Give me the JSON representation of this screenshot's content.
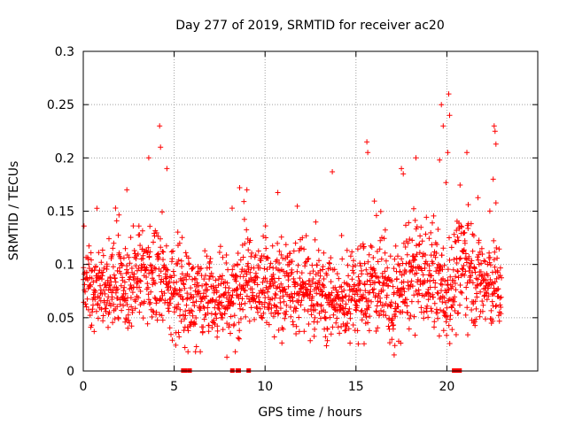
{
  "chart_data": {
    "type": "scatter",
    "title": "Day 277 of 2019, SRMTID for receiver ac20",
    "xlabel": "GPS time / hours",
    "ylabel": "SRMTID / TECUs",
    "xlim": [
      0,
      25
    ],
    "ylim": [
      0,
      0.3
    ],
    "grid": true,
    "legend": "none",
    "marker": "+",
    "color": "#ff0000",
    "x_ticks": [
      0,
      5,
      10,
      15,
      20
    ],
    "x_tick_labels": [
      "0",
      "5",
      "10",
      "15",
      "20"
    ],
    "y_ticks": [
      0,
      0.05,
      0.1,
      0.15,
      0.2,
      0.25,
      0.3
    ],
    "y_tick_labels": [
      "0",
      "0.05",
      "0.1",
      "0.15",
      "0.2",
      "0.25",
      "0.3"
    ],
    "sampling": {
      "x_start": 0.0,
      "x_end": 23.0,
      "x_step": 0.0125,
      "n_points": 1841,
      "note": "dense scatter; y values below are a reconstruction of the median level and spread over time"
    },
    "level_profile": [
      {
        "x": 0,
        "center": 0.082,
        "spread": 0.022
      },
      {
        "x": 2,
        "center": 0.08,
        "spread": 0.025
      },
      {
        "x": 3,
        "center": 0.085,
        "spread": 0.028
      },
      {
        "x": 4,
        "center": 0.09,
        "spread": 0.03
      },
      {
        "x": 5,
        "center": 0.072,
        "spread": 0.026
      },
      {
        "x": 7,
        "center": 0.068,
        "spread": 0.025
      },
      {
        "x": 8,
        "center": 0.062,
        "spread": 0.022
      },
      {
        "x": 9,
        "center": 0.085,
        "spread": 0.028
      },
      {
        "x": 11,
        "center": 0.075,
        "spread": 0.026
      },
      {
        "x": 13,
        "center": 0.08,
        "spread": 0.028
      },
      {
        "x": 14,
        "center": 0.062,
        "spread": 0.022
      },
      {
        "x": 15,
        "center": 0.07,
        "spread": 0.025
      },
      {
        "x": 16,
        "center": 0.085,
        "spread": 0.03
      },
      {
        "x": 17,
        "center": 0.065,
        "spread": 0.025
      },
      {
        "x": 18,
        "center": 0.088,
        "spread": 0.03
      },
      {
        "x": 19,
        "center": 0.09,
        "spread": 0.03
      },
      {
        "x": 20,
        "center": 0.072,
        "spread": 0.028
      },
      {
        "x": 21,
        "center": 0.105,
        "spread": 0.032
      },
      {
        "x": 22,
        "center": 0.08,
        "spread": 0.028
      },
      {
        "x": 23,
        "center": 0.08,
        "spread": 0.025
      }
    ],
    "outliers": [
      {
        "x": 4.2,
        "y": 0.23
      },
      {
        "x": 4.25,
        "y": 0.21
      },
      {
        "x": 3.6,
        "y": 0.2
      },
      {
        "x": 4.6,
        "y": 0.19
      },
      {
        "x": 15.6,
        "y": 0.215
      },
      {
        "x": 15.65,
        "y": 0.205
      },
      {
        "x": 13.7,
        "y": 0.187
      },
      {
        "x": 18.3,
        "y": 0.2
      },
      {
        "x": 19.7,
        "y": 0.25
      },
      {
        "x": 19.8,
        "y": 0.23
      },
      {
        "x": 20.1,
        "y": 0.26
      },
      {
        "x": 20.15,
        "y": 0.24
      },
      {
        "x": 20.05,
        "y": 0.205
      },
      {
        "x": 19.6,
        "y": 0.198
      },
      {
        "x": 21.1,
        "y": 0.205
      },
      {
        "x": 22.6,
        "y": 0.23
      },
      {
        "x": 22.65,
        "y": 0.225
      },
      {
        "x": 22.7,
        "y": 0.213
      },
      {
        "x": 22.55,
        "y": 0.18
      },
      {
        "x": 17.5,
        "y": 0.19
      },
      {
        "x": 17.6,
        "y": 0.185
      },
      {
        "x": 9.0,
        "y": 0.17
      },
      {
        "x": 2.4,
        "y": 0.17
      },
      {
        "x": 8.6,
        "y": 0.172
      },
      {
        "x": 7.9,
        "y": 0.013
      },
      {
        "x": 17.1,
        "y": 0.015
      }
    ],
    "zero_points": [
      {
        "x": 5.5,
        "y": 0
      },
      {
        "x": 5.6,
        "y": 0
      },
      {
        "x": 5.85,
        "y": 0
      },
      {
        "x": 8.2,
        "y": 0
      },
      {
        "x": 8.5,
        "y": 0
      },
      {
        "x": 8.55,
        "y": 0
      },
      {
        "x": 9.1,
        "y": 0
      },
      {
        "x": 20.4,
        "y": 0
      },
      {
        "x": 20.5,
        "y": 0
      },
      {
        "x": 20.55,
        "y": 0
      },
      {
        "x": 20.6,
        "y": 0
      },
      {
        "x": 20.7,
        "y": 0
      }
    ]
  }
}
